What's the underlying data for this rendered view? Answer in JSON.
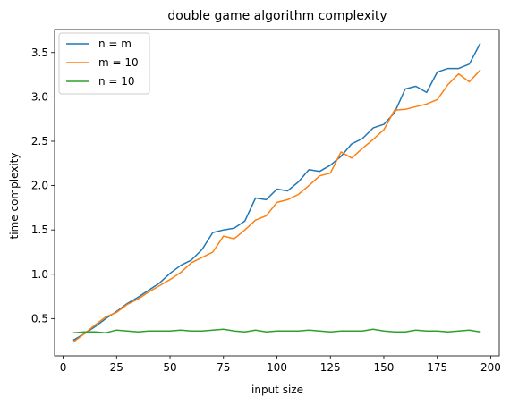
{
  "chart_data": {
    "type": "line",
    "title": "double game algorithm complexity",
    "xlabel": "input size",
    "ylabel": "time complexity",
    "xlim": [
      -4,
      204
    ],
    "ylim": [
      0.08,
      3.76
    ],
    "x_ticks": [
      0,
      25,
      50,
      75,
      100,
      125,
      150,
      175,
      200
    ],
    "y_ticks": [
      0.5,
      1.0,
      1.5,
      2.0,
      2.5,
      3.0,
      3.5
    ],
    "y_tick_labels": [
      "0.5",
      "1.0",
      "1.5",
      "2.0",
      "2.5",
      "3.0",
      "3.5"
    ],
    "grid": false,
    "legend_position": "top-left",
    "x": [
      5,
      10,
      15,
      20,
      25,
      30,
      35,
      40,
      45,
      50,
      55,
      60,
      65,
      70,
      75,
      80,
      85,
      90,
      95,
      100,
      105,
      110,
      115,
      120,
      125,
      130,
      135,
      140,
      145,
      150,
      155,
      160,
      165,
      170,
      175,
      180,
      185,
      190,
      195
    ],
    "series": [
      {
        "name": "n = m",
        "color": "#1f77b4",
        "values": [
          0.26,
          0.33,
          0.41,
          0.5,
          0.58,
          0.67,
          0.74,
          0.82,
          0.9,
          1.01,
          1.1,
          1.16,
          1.28,
          1.47,
          1.5,
          1.52,
          1.6,
          1.86,
          1.84,
          1.96,
          1.94,
          2.04,
          2.18,
          2.16,
          2.23,
          2.33,
          2.47,
          2.53,
          2.65,
          2.69,
          2.82,
          3.09,
          3.12,
          3.05,
          3.28,
          3.32,
          3.32,
          3.37,
          3.6
        ]
      },
      {
        "name": "m = 10",
        "color": "#ff7f0e",
        "values": [
          0.24,
          0.33,
          0.43,
          0.52,
          0.57,
          0.66,
          0.72,
          0.8,
          0.87,
          0.94,
          1.02,
          1.13,
          1.19,
          1.25,
          1.43,
          1.4,
          1.5,
          1.61,
          1.66,
          1.81,
          1.84,
          1.9,
          2.0,
          2.11,
          2.14,
          2.38,
          2.31,
          2.42,
          2.52,
          2.63,
          2.85,
          2.86,
          2.89,
          2.92,
          2.97,
          3.14,
          3.26,
          3.17,
          3.3
        ]
      },
      {
        "name": "n = 10",
        "color": "#2ca02c",
        "values": [
          0.34,
          0.35,
          0.35,
          0.34,
          0.37,
          0.36,
          0.35,
          0.36,
          0.36,
          0.36,
          0.37,
          0.36,
          0.36,
          0.37,
          0.38,
          0.36,
          0.35,
          0.37,
          0.35,
          0.36,
          0.36,
          0.36,
          0.37,
          0.36,
          0.35,
          0.36,
          0.36,
          0.36,
          0.38,
          0.36,
          0.35,
          0.35,
          0.37,
          0.36,
          0.36,
          0.35,
          0.36,
          0.37,
          0.35
        ]
      }
    ]
  }
}
